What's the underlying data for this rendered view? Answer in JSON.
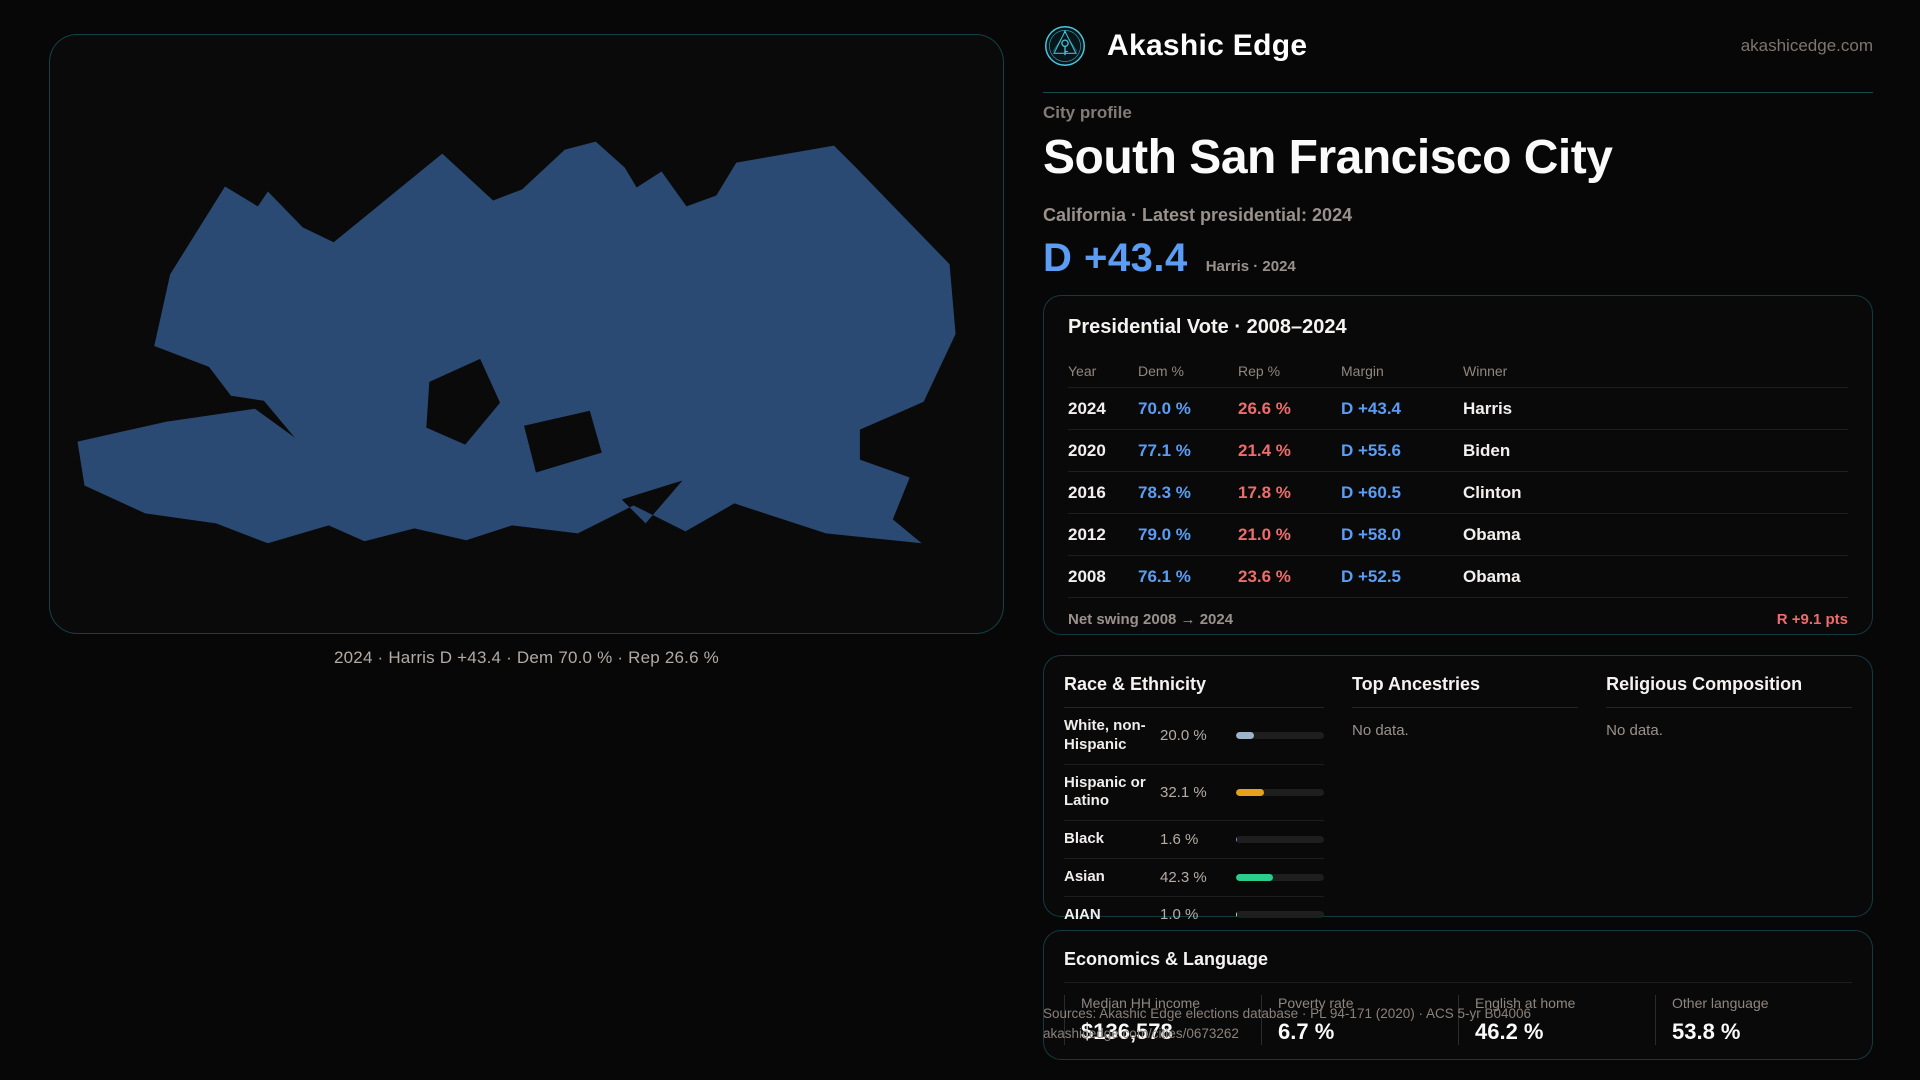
{
  "brand": {
    "name": "Akashic Edge",
    "domain": "akashicedge.com",
    "logo_color": "#49c8dc"
  },
  "map": {
    "caption": "2024 · Harris D +43.4 · Dem 70.0 % · Rep 26.6 %",
    "shape_fill": "#2a4a73"
  },
  "profile": {
    "eyebrow": "City profile",
    "title": "South San Francisco City",
    "subtitle": "California · Latest presidential: 2024",
    "hero_margin": "D +43.4",
    "hero_note": "Harris · 2024"
  },
  "colors": {
    "dem_blue": "#5b9df5",
    "rep_red": "#ee6c6c",
    "border_teal": "rgba(47,186,205,0.3)"
  },
  "vote": {
    "title": "Presidential Vote · 2008–2024",
    "headers": {
      "year": "Year",
      "dem": "Dem %",
      "rep": "Rep %",
      "margin": "Margin",
      "winner": "Winner"
    },
    "rows": [
      {
        "year": "2024",
        "dem": "70.0 %",
        "rep": "26.6 %",
        "margin": "D +43.4",
        "winner": "Harris"
      },
      {
        "year": "2020",
        "dem": "77.1 %",
        "rep": "21.4 %",
        "margin": "D +55.6",
        "winner": "Biden"
      },
      {
        "year": "2016",
        "dem": "78.3 %",
        "rep": "17.8 %",
        "margin": "D +60.5",
        "winner": "Clinton"
      },
      {
        "year": "2012",
        "dem": "79.0 %",
        "rep": "21.0 %",
        "margin": "D +58.0",
        "winner": "Obama"
      },
      {
        "year": "2008",
        "dem": "76.1 %",
        "rep": "23.6 %",
        "margin": "D +52.5",
        "winner": "Obama"
      }
    ],
    "net_swing_label": "Net swing 2008 → 2024",
    "net_swing_value": "R +9.1 pts"
  },
  "demographics": {
    "race": {
      "title": "Race & Ethnicity",
      "rows": [
        {
          "label": "White, non-Hispanic",
          "value": "20.0 %",
          "pct": 20.0,
          "color": "#9db2cc"
        },
        {
          "label": "Hispanic or Latino",
          "value": "32.1 %",
          "pct": 32.1,
          "color": "#e5a11c"
        },
        {
          "label": "Black",
          "value": "1.6 %",
          "pct": 1.6,
          "color": "#8d7ce0"
        },
        {
          "label": "Asian",
          "value": "42.3 %",
          "pct": 42.3,
          "color": "#2bcd8d"
        },
        {
          "label": "AIAN",
          "value": "1.0 %",
          "pct": 1.0,
          "color": "#cfcfcf"
        }
      ]
    },
    "ancestries": {
      "title": "Top Ancestries",
      "empty": "No data."
    },
    "religion": {
      "title": "Religious Composition",
      "empty": "No data."
    }
  },
  "economics": {
    "title": "Economics & Language",
    "stats": [
      {
        "label": "Median HH income",
        "value": "$136,578"
      },
      {
        "label": "Poverty rate",
        "value": "6.7 %"
      },
      {
        "label": "English at home",
        "value": "46.2 %"
      },
      {
        "label": "Other language",
        "value": "53.8 %"
      }
    ]
  },
  "footer": {
    "sources": "Sources: Akashic Edge elections database · PL 94-171 (2020) · ACS 5-yr B04006",
    "permalink": "akashicedge.com/cities/0673262"
  }
}
